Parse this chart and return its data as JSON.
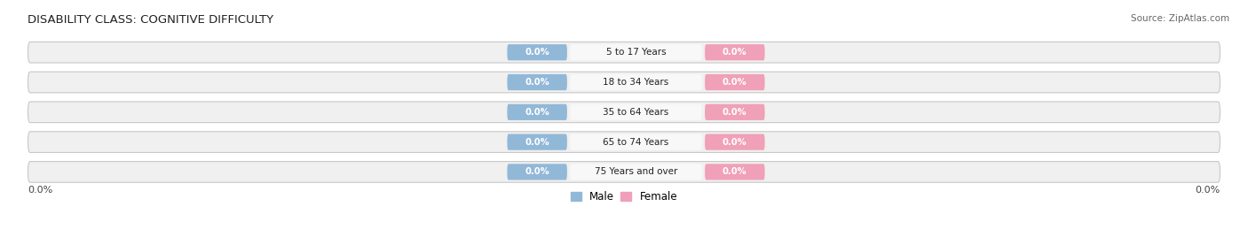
{
  "title": "DISABILITY CLASS: COGNITIVE DIFFICULTY",
  "source": "Source: ZipAtlas.com",
  "categories": [
    "5 to 17 Years",
    "18 to 34 Years",
    "35 to 64 Years",
    "65 to 74 Years",
    "75 Years and over"
  ],
  "male_values": [
    0.0,
    0.0,
    0.0,
    0.0,
    0.0
  ],
  "female_values": [
    0.0,
    0.0,
    0.0,
    0.0,
    0.0
  ],
  "male_color": "#92b8d8",
  "female_color": "#f0a0b8",
  "center_label_color": "#333333",
  "bar_bg_color_even": "#f0f0f0",
  "bar_bg_color_odd": "#e8e8e8",
  "bar_edge_color": "#cccccc",
  "title_fontsize": 9.5,
  "source_fontsize": 8,
  "legend_fontsize": 8,
  "male_legend_color": "#92b8d8",
  "female_legend_color": "#f0a0b8",
  "axis_label_left": "0.0%",
  "axis_label_right": "0.0%",
  "xlim": 100,
  "center_white_bg": "#ffffff"
}
